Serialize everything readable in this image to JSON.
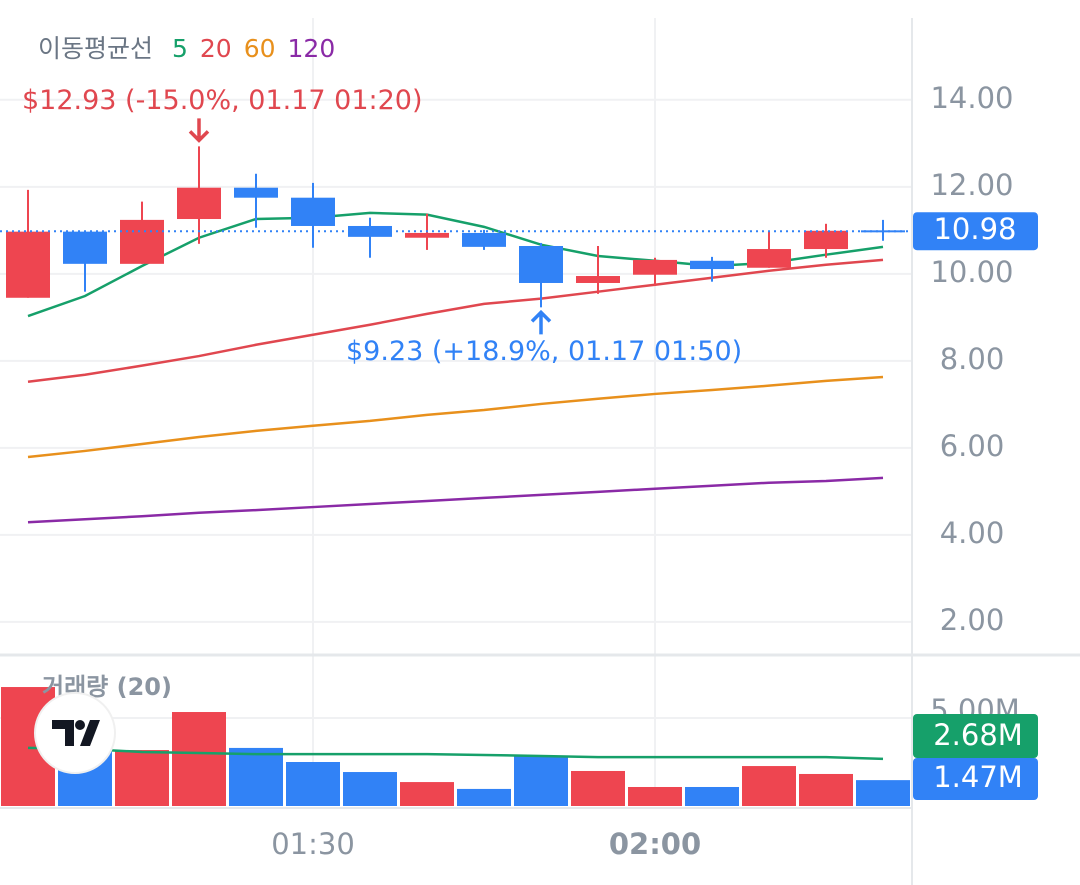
{
  "chart_data": [
    {
      "type": "candlestick",
      "legend_title": "이동평균선",
      "categories": [
        null,
        null,
        null,
        null,
        null,
        "01:30",
        null,
        null,
        null,
        null,
        null,
        "02:00",
        null,
        null,
        null,
        null
      ],
      "open": [
        9.45,
        10.97,
        10.23,
        11.26,
        11.98,
        11.75,
        11.1,
        10.83,
        10.94,
        10.64,
        9.79,
        9.98,
        10.3,
        10.14,
        10.57,
        11.0
      ],
      "high": [
        11.93,
        10.97,
        11.66,
        12.93,
        12.3,
        12.09,
        11.29,
        11.38,
        11.01,
        10.71,
        10.64,
        10.37,
        10.39,
        10.99,
        11.15,
        11.24
      ],
      "low": [
        9.45,
        9.59,
        10.23,
        10.69,
        11.06,
        10.6,
        10.37,
        10.55,
        10.55,
        9.23,
        9.54,
        9.72,
        9.82,
        10.14,
        10.37,
        10.76
      ],
      "close": [
        10.97,
        10.23,
        11.24,
        11.98,
        11.75,
        11.1,
        10.85,
        10.94,
        10.62,
        9.79,
        9.95,
        10.32,
        10.11,
        10.57,
        10.99,
        10.98
      ],
      "up_color": "#ee4550",
      "down_color": "#3182f6",
      "series": [
        {
          "name": "5",
          "color": "#16a06a",
          "values": [
            9.03,
            9.49,
            10.18,
            10.83,
            11.26,
            11.29,
            11.4,
            11.36,
            11.08,
            10.67,
            10.41,
            10.3,
            10.18,
            10.25,
            10.44,
            10.62
          ]
        },
        {
          "name": "20",
          "color": "#e0474f",
          "values": [
            7.52,
            7.68,
            7.89,
            8.11,
            8.37,
            8.6,
            8.83,
            9.08,
            9.31,
            9.43,
            9.59,
            9.75,
            9.91,
            10.07,
            10.21,
            10.32
          ]
        },
        {
          "name": "60",
          "color": "#e8901c",
          "values": [
            5.79,
            5.93,
            6.09,
            6.25,
            6.39,
            6.51,
            6.62,
            6.76,
            6.87,
            7.01,
            7.13,
            7.24,
            7.33,
            7.43,
            7.54,
            7.63
          ]
        },
        {
          "name": "120",
          "color": "#8a2aa6",
          "values": [
            4.29,
            4.36,
            4.43,
            4.51,
            4.57,
            4.64,
            4.71,
            4.78,
            4.85,
            4.92,
            4.99,
            5.06,
            5.13,
            5.2,
            5.24,
            5.31
          ]
        }
      ],
      "annotations": [
        {
          "text": "$12.93 (-15.0%, 01.17 01:20)",
          "color": "#e0474f"
        },
        {
          "text": "$9.23 (+18.9%, 01.17 01:50)",
          "color": "#3182f6"
        }
      ],
      "ylim": [
        1.24,
        15.88
      ],
      "yticks": [
        {
          "value": 2,
          "label": "2.00"
        },
        {
          "value": 4,
          "label": "4.00"
        },
        {
          "value": 6,
          "label": "6.00"
        },
        {
          "value": 8,
          "label": "8.00"
        },
        {
          "value": 10,
          "label": "10.00"
        },
        {
          "value": 12,
          "label": "12.00"
        },
        {
          "value": 14,
          "label": "14.00"
        }
      ],
      "grid": true
    },
    {
      "type": "bar",
      "title": "거래량 (20)",
      "values": [
        6.76,
        3.35,
        3.18,
        5.34,
        3.3,
        2.5,
        1.93,
        1.36,
        0.97,
        2.84,
        1.99,
        1.08,
        1.08,
        2.27,
        1.82,
        1.47
      ],
      "value_labels": [
        null,
        null,
        null,
        null,
        null,
        null,
        null,
        null,
        null,
        null,
        null,
        null,
        null,
        null,
        null,
        "1.47M"
      ],
      "ma_color": "#16a06a",
      "ma_values": [
        3.3,
        3.24,
        3.07,
        3.01,
        2.95,
        2.95,
        2.95,
        2.95,
        2.9,
        2.84,
        2.78,
        2.78,
        2.78,
        2.78,
        2.78,
        2.68
      ],
      "ma_value_labels": [
        null,
        null,
        null,
        null,
        null,
        null,
        null,
        null,
        null,
        null,
        null,
        null,
        null,
        null,
        null,
        "2.68M"
      ],
      "ylim": [
        0,
        8.58
      ],
      "yticks": [
        {
          "value": 5,
          "label": "5.00M"
        }
      ],
      "grid": true
    }
  ]
}
